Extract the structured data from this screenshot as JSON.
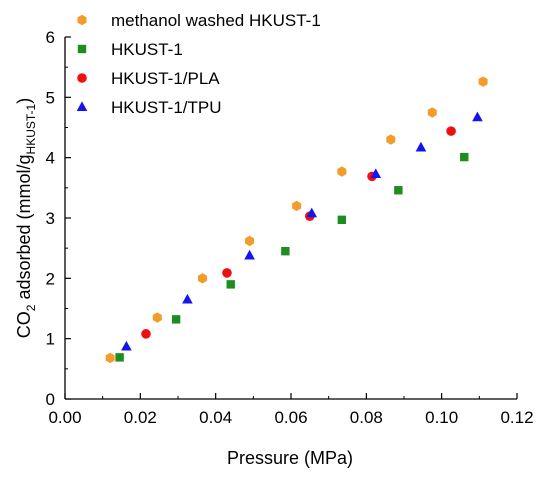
{
  "chart_data": {
    "type": "scatter",
    "xlabel": "Pressure (MPa)",
    "ylabel": {
      "prefix": "CO",
      "sub": "2",
      "middle": " adsorbed (mmol/g",
      "sub2": "HKUST-1",
      "suffix": ")"
    },
    "xlim": [
      0.0,
      0.12
    ],
    "ylim": [
      0,
      6
    ],
    "xticks": [
      "0.00",
      "0.02",
      "0.04",
      "0.06",
      "0.08",
      "0.10",
      "0.12"
    ],
    "yticks": [
      "0",
      "1",
      "2",
      "3",
      "4",
      "5",
      "6"
    ],
    "grid": false,
    "legend_position": "top-left",
    "series": [
      {
        "name": "methanol washed HKUST-1",
        "marker": "hexagon",
        "color": "#F39C2B",
        "x": [
          0.012,
          0.0245,
          0.0365,
          0.049,
          0.0615,
          0.0735,
          0.0865,
          0.0975,
          0.111
        ],
        "y": [
          0.68,
          1.35,
          2.0,
          2.62,
          3.2,
          3.77,
          4.3,
          4.75,
          5.26
        ]
      },
      {
        "name": "HKUST-1",
        "marker": "square",
        "color": "#1E8C1E",
        "x": [
          0.0145,
          0.0295,
          0.044,
          0.0585,
          0.0735,
          0.0885,
          0.106
        ],
        "y": [
          0.69,
          1.32,
          1.9,
          2.45,
          2.97,
          3.46,
          4.01
        ]
      },
      {
        "name": "HKUST-1/PLA",
        "marker": "circle",
        "color": "#EE1111",
        "x": [
          0.0215,
          0.043,
          0.065,
          0.0815,
          0.1025
        ],
        "y": [
          1.08,
          2.09,
          3.03,
          3.69,
          4.44
        ]
      },
      {
        "name": "HKUST-1/TPU",
        "marker": "triangle",
        "color": "#1414EE",
        "x": [
          0.0163,
          0.0325,
          0.049,
          0.0655,
          0.0825,
          0.0945,
          0.1095
        ],
        "y": [
          0.87,
          1.65,
          2.38,
          3.08,
          3.73,
          4.17,
          4.67
        ]
      }
    ]
  }
}
